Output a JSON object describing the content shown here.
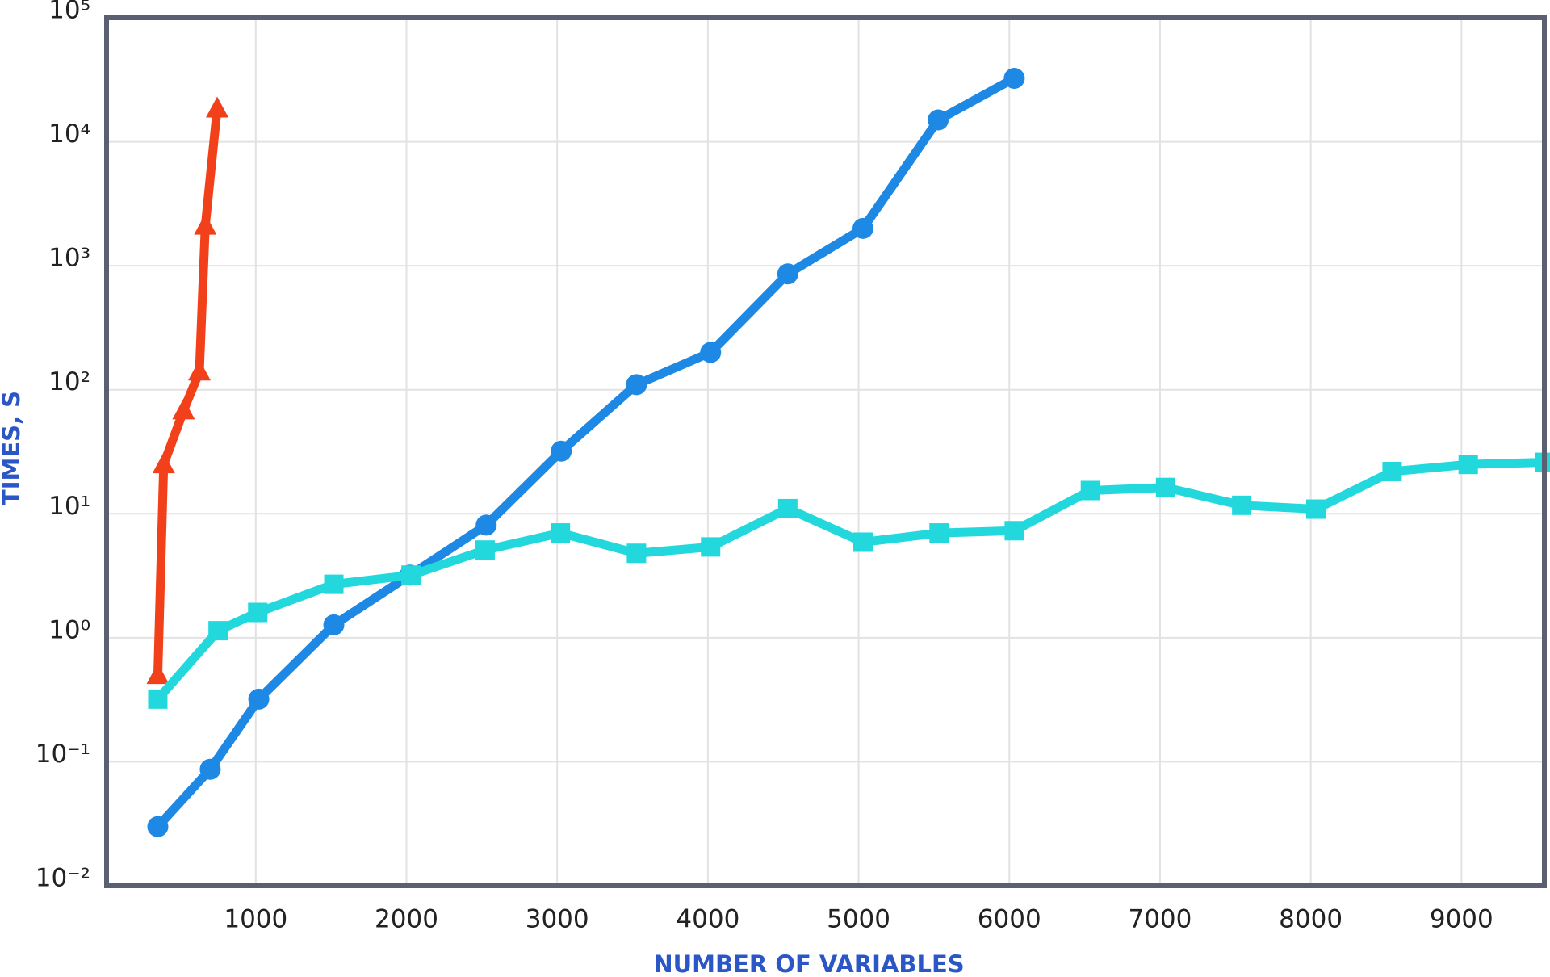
{
  "chart_data": {
    "type": "line",
    "x_label": "NUMBER OF VARIABLES",
    "y_label": "TIMES, S",
    "xlim": [
      10,
      9550
    ],
    "xticks": [
      1000,
      2000,
      3000,
      4000,
      5000,
      6000,
      7000,
      8000,
      9000
    ],
    "ylim": [
      0.01,
      100000
    ],
    "yscale": "log",
    "yticks": [
      {
        "value": 0.01,
        "label": "10⁻²"
      },
      {
        "value": 0.1,
        "label": "10⁻¹"
      },
      {
        "value": 1,
        "label": "10⁰"
      },
      {
        "value": 10,
        "label": "10¹"
      },
      {
        "value": 100,
        "label": "10²"
      },
      {
        "value": 1000,
        "label": "10³"
      },
      {
        "value": 10000,
        "label": "10⁴"
      },
      {
        "value": 100000,
        "label": "10⁵"
      }
    ],
    "grid": true,
    "series": [
      {
        "color": "#f2411a",
        "marker": "triangle",
        "x": [
          350,
          389,
          521,
          626,
          665,
          744
        ],
        "values": [
          0.5,
          25,
          68,
          140,
          2100,
          18500
        ]
      },
      {
        "color": "#1e88e5",
        "marker": "circle",
        "x": [
          350,
          698,
          1020,
          1518,
          2023,
          2529,
          3027,
          3526,
          4018,
          4530,
          5029,
          5528,
          6033
        ],
        "values": [
          0.03,
          0.087,
          0.32,
          1.27,
          3.2,
          8.1,
          32,
          110,
          200,
          860,
          2000,
          15000,
          32500
        ]
      },
      {
        "color": "#22d8dc",
        "marker": "square",
        "x": [
          350,
          750,
          1013,
          1518,
          2030,
          2522,
          3021,
          3526,
          4018,
          4530,
          5029,
          5534,
          6033,
          6538,
          7037,
          7542,
          8034,
          8540,
          9045,
          9550
        ],
        "values": [
          0.32,
          1.14,
          1.6,
          2.7,
          3.2,
          5.1,
          7.0,
          4.8,
          5.4,
          11,
          5.9,
          7.0,
          7.3,
          15.4,
          16.3,
          11.7,
          10.9,
          21.9,
          25,
          26
        ]
      }
    ]
  }
}
